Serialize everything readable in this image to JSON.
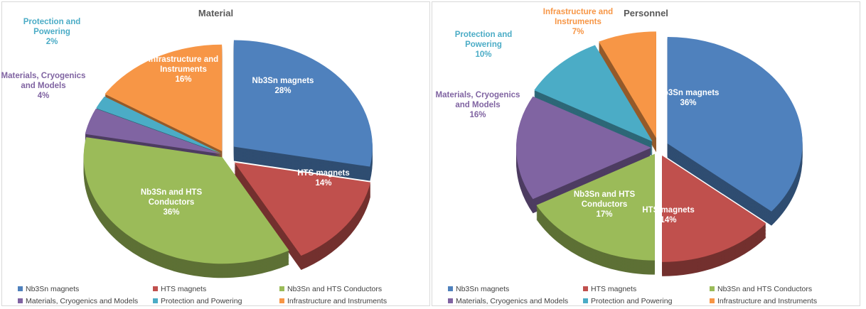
{
  "chart_data": [
    {
      "type": "pie",
      "title": "Material",
      "categories": [
        "Nb3Sn magnets",
        "HTS magnets",
        "Nb3Sn and HTS Conductors",
        "Materials, Cryogenics and Models",
        "Protection and Powering",
        "Infrastructure and Instruments"
      ],
      "values": [
        28,
        14,
        36,
        4,
        2,
        16
      ],
      "value_labels": [
        "28%",
        "14%",
        "36%",
        "4%",
        "2%",
        "16%"
      ],
      "colors": [
        "#4f81bd",
        "#c0504d",
        "#9bbb59",
        "#8064a2",
        "#4bacc6",
        "#f79646"
      ],
      "legend": "bottom"
    },
    {
      "type": "pie",
      "title": "Personnel",
      "categories": [
        "Nb3Sn magnets",
        "HTS magnets",
        "Nb3Sn and HTS Conductors",
        "Materials, Cryogenics and Models",
        "Protection and Powering",
        "Infrastructure and Instruments"
      ],
      "values": [
        36,
        14,
        17,
        16,
        10,
        7
      ],
      "value_labels": [
        "36%",
        "14%",
        "17%",
        "16%",
        "10%",
        "7%"
      ],
      "colors": [
        "#4f81bd",
        "#c0504d",
        "#9bbb59",
        "#8064a2",
        "#4bacc6",
        "#f79646"
      ],
      "legend": "bottom"
    }
  ]
}
